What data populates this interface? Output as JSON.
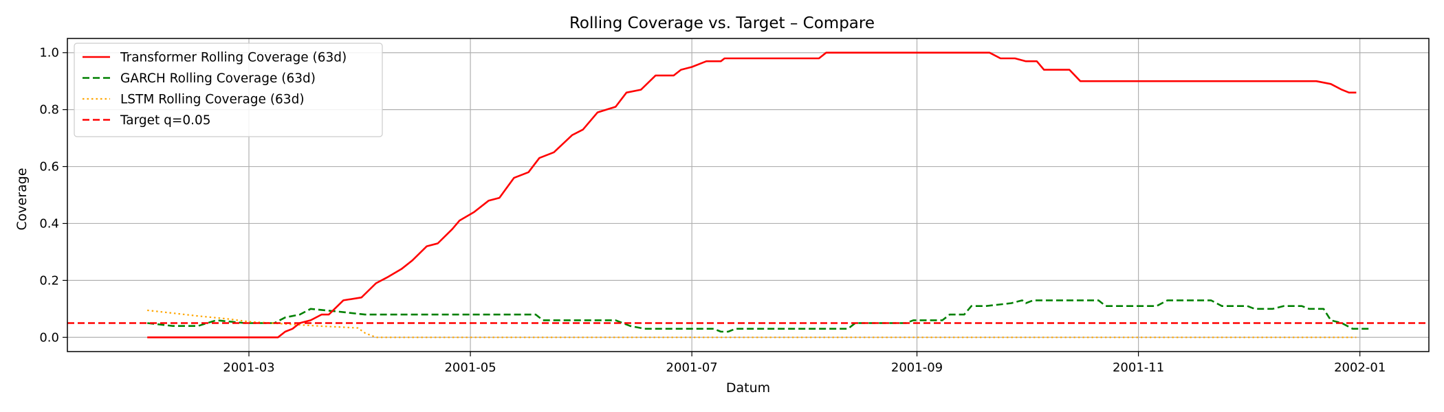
{
  "chart_data": {
    "type": "line",
    "title": "Rolling Coverage vs. Target – Compare",
    "xlabel": "Datum",
    "ylabel": "Coverage",
    "x_range": [
      "2001-01-10",
      "2002-01-20"
    ],
    "ylim": [
      -0.05,
      1.05
    ],
    "x_ticks": [
      "2001-03-01",
      "2001-05-01",
      "2001-07-01",
      "2001-09-01",
      "2001-11-01",
      "2002-01-01"
    ],
    "x_tick_labels": [
      "2001-03",
      "2001-05",
      "2001-07",
      "2001-09",
      "2001-11",
      "2002-01"
    ],
    "y_ticks": [
      0.0,
      0.2,
      0.4,
      0.6,
      0.8,
      1.0
    ],
    "y_tick_labels": [
      "0.0",
      "0.2",
      "0.4",
      "0.6",
      "0.8",
      "1.0"
    ],
    "grid": true,
    "legend_position": "top-left",
    "series": [
      {
        "name": "Transformer Rolling Coverage (63d)",
        "color": "#ff0000",
        "style": "solid",
        "points": [
          [
            "2001-02-01",
            0.0
          ],
          [
            "2001-03-09",
            0.0
          ],
          [
            "2001-03-11",
            0.02
          ],
          [
            "2001-03-13",
            0.03
          ],
          [
            "2001-03-15",
            0.05
          ],
          [
            "2001-03-18",
            0.06
          ],
          [
            "2001-03-21",
            0.08
          ],
          [
            "2001-03-23",
            0.08
          ],
          [
            "2001-03-27",
            0.13
          ],
          [
            "2001-04-01",
            0.14
          ],
          [
            "2001-04-05",
            0.19
          ],
          [
            "2001-04-08",
            0.21
          ],
          [
            "2001-04-12",
            0.24
          ],
          [
            "2001-04-15",
            0.27
          ],
          [
            "2001-04-19",
            0.32
          ],
          [
            "2001-04-22",
            0.33
          ],
          [
            "2001-04-26",
            0.38
          ],
          [
            "2001-04-28",
            0.41
          ],
          [
            "2001-05-02",
            0.44
          ],
          [
            "2001-05-06",
            0.48
          ],
          [
            "2001-05-09",
            0.49
          ],
          [
            "2001-05-13",
            0.56
          ],
          [
            "2001-05-17",
            0.58
          ],
          [
            "2001-05-20",
            0.63
          ],
          [
            "2001-05-24",
            0.65
          ],
          [
            "2001-05-29",
            0.71
          ],
          [
            "2001-06-01",
            0.73
          ],
          [
            "2001-06-05",
            0.79
          ],
          [
            "2001-06-10",
            0.81
          ],
          [
            "2001-06-13",
            0.86
          ],
          [
            "2001-06-17",
            0.87
          ],
          [
            "2001-06-21",
            0.92
          ],
          [
            "2001-06-26",
            0.92
          ],
          [
            "2001-06-28",
            0.94
          ],
          [
            "2001-07-01",
            0.95
          ],
          [
            "2001-07-05",
            0.97
          ],
          [
            "2001-07-09",
            0.97
          ],
          [
            "2001-07-10",
            0.98
          ],
          [
            "2001-08-05",
            0.98
          ],
          [
            "2001-08-07",
            1.0
          ],
          [
            "2001-09-21",
            1.0
          ],
          [
            "2001-09-24",
            0.98
          ],
          [
            "2001-09-28",
            0.98
          ],
          [
            "2001-10-01",
            0.97
          ],
          [
            "2001-10-04",
            0.97
          ],
          [
            "2001-10-06",
            0.94
          ],
          [
            "2001-10-13",
            0.94
          ],
          [
            "2001-10-16",
            0.9
          ],
          [
            "2001-12-20",
            0.9
          ],
          [
            "2001-12-24",
            0.89
          ],
          [
            "2001-12-27",
            0.87
          ],
          [
            "2001-12-29",
            0.86
          ],
          [
            "2001-12-31",
            0.86
          ]
        ]
      },
      {
        "name": "GARCH Rolling Coverage (63d)",
        "color": "#008000",
        "style": "dashed",
        "points": [
          [
            "2001-02-01",
            0.05
          ],
          [
            "2001-02-08",
            0.04
          ],
          [
            "2001-02-15",
            0.04
          ],
          [
            "2001-02-20",
            0.06
          ],
          [
            "2001-02-28",
            0.05
          ],
          [
            "2001-03-08",
            0.05
          ],
          [
            "2001-03-11",
            0.07
          ],
          [
            "2001-03-15",
            0.08
          ],
          [
            "2001-03-18",
            0.1
          ],
          [
            "2001-03-26",
            0.09
          ],
          [
            "2001-04-02",
            0.08
          ],
          [
            "2001-05-19",
            0.08
          ],
          [
            "2001-05-21",
            0.06
          ],
          [
            "2001-06-10",
            0.06
          ],
          [
            "2001-06-14",
            0.04
          ],
          [
            "2001-06-18",
            0.03
          ],
          [
            "2001-06-20",
            0.03
          ],
          [
            "2001-07-07",
            0.03
          ],
          [
            "2001-07-09",
            0.02
          ],
          [
            "2001-07-11",
            0.02
          ],
          [
            "2001-07-13",
            0.03
          ],
          [
            "2001-08-13",
            0.03
          ],
          [
            "2001-08-15",
            0.05
          ],
          [
            "2001-08-29",
            0.05
          ],
          [
            "2001-08-31",
            0.06
          ],
          [
            "2001-09-08",
            0.06
          ],
          [
            "2001-09-10",
            0.08
          ],
          [
            "2001-09-14",
            0.08
          ],
          [
            "2001-09-16",
            0.11
          ],
          [
            "2001-09-20",
            0.11
          ],
          [
            "2001-09-27",
            0.12
          ],
          [
            "2001-09-30",
            0.13
          ],
          [
            "2001-10-01",
            0.12
          ],
          [
            "2001-10-03",
            0.13
          ],
          [
            "2001-10-21",
            0.13
          ],
          [
            "2001-10-23",
            0.11
          ],
          [
            "2001-11-06",
            0.11
          ],
          [
            "2001-11-09",
            0.13
          ],
          [
            "2001-11-21",
            0.13
          ],
          [
            "2001-11-24",
            0.11
          ],
          [
            "2001-12-01",
            0.11
          ],
          [
            "2001-12-03",
            0.1
          ],
          [
            "2001-12-08",
            0.1
          ],
          [
            "2001-12-11",
            0.11
          ],
          [
            "2001-12-16",
            0.11
          ],
          [
            "2001-12-18",
            0.1
          ],
          [
            "2001-12-22",
            0.1
          ],
          [
            "2001-12-24",
            0.06
          ],
          [
            "2001-12-27",
            0.05
          ],
          [
            "2001-12-30",
            0.03
          ],
          [
            "2002-01-02",
            0.03
          ],
          [
            "2002-01-04",
            0.03
          ]
        ]
      },
      {
        "name": "LSTM Rolling Coverage (63d)",
        "color": "#ffa500",
        "style": "dotted",
        "points": [
          [
            "2001-02-01",
            0.095
          ],
          [
            "2001-02-08",
            0.085
          ],
          [
            "2001-02-15",
            0.075
          ],
          [
            "2001-02-23",
            0.065
          ],
          [
            "2001-03-01",
            0.055
          ],
          [
            "2001-03-10",
            0.048
          ],
          [
            "2001-03-20",
            0.04
          ],
          [
            "2001-03-31",
            0.033
          ],
          [
            "2001-04-02",
            0.015
          ],
          [
            "2001-04-05",
            0.0
          ],
          [
            "2001-12-31",
            0.0
          ]
        ]
      },
      {
        "name": "Target q=0.05",
        "color": "#ff0000",
        "style": "dashed",
        "reference_line": true,
        "points": [
          [
            "2001-01-10",
            0.05
          ],
          [
            "2002-01-20",
            0.05
          ]
        ]
      }
    ]
  }
}
